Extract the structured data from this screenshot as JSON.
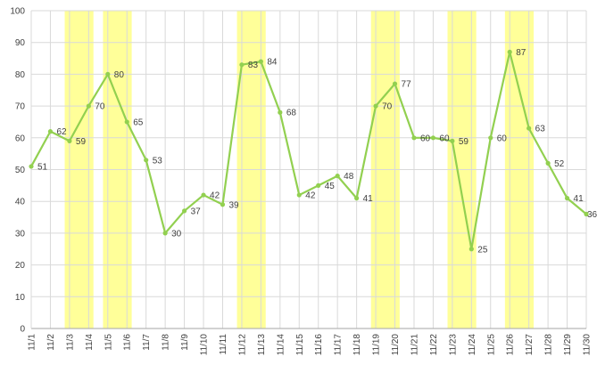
{
  "chart_data": {
    "type": "line",
    "x": [
      "11/1",
      "11/2",
      "11/3",
      "11/4",
      "11/5",
      "11/6",
      "11/7",
      "11/8",
      "11/9",
      "11/10",
      "11/11",
      "11/12",
      "11/13",
      "11/14",
      "11/15",
      "11/16",
      "11/17",
      "11/18",
      "11/19",
      "11/20",
      "11/21",
      "11/22",
      "11/23",
      "11/24",
      "11/25",
      "11/26",
      "11/27",
      "11/28",
      "11/29",
      "11/30"
    ],
    "series": [
      {
        "values": [
          51,
          62,
          59,
          70,
          80,
          65,
          53,
          30,
          37,
          42,
          39,
          83,
          84,
          68,
          42,
          45,
          48,
          41,
          70,
          77,
          60,
          60,
          59,
          25,
          60,
          87,
          63,
          52,
          41,
          36
        ]
      }
    ],
    "ylim": [
      0,
      100
    ],
    "yticks": [
      0,
      10,
      20,
      30,
      40,
      50,
      60,
      70,
      80,
      90,
      100
    ],
    "grid": true,
    "highlight_ranges": [
      [
        "11/3",
        "11/4"
      ],
      [
        "11/5",
        "11/6"
      ],
      [
        "11/12",
        "11/13"
      ],
      [
        "11/19",
        "11/20"
      ],
      [
        "11/23",
        "11/24"
      ],
      [
        "11/26",
        "11/27"
      ]
    ],
    "colors": {
      "line": "#92D050",
      "highlight": "#FFFF99",
      "grid": "#D9D9D9",
      "axis": "#A6A6A6",
      "text": "#404040"
    }
  }
}
